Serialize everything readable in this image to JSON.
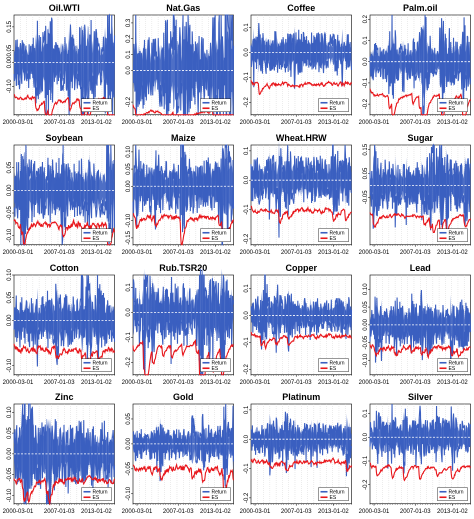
{
  "chart_data": {
    "type": "line",
    "x_ticks": [
      "2000-03-01",
      "2007-01-03",
      "2013-01-02"
    ],
    "legend": {
      "placement": "bottom-right",
      "entries": [
        "Return",
        "ES"
      ]
    },
    "colors": {
      "Return": "#3b5fc0",
      "ES": "#e8161b",
      "zero_line": "#ffffff",
      "grid": "#cfcfcf"
    },
    "panels": [
      {
        "title": "Oil.WTI",
        "ylim": [
          -0.22,
          0.2
        ],
        "yticks": [
          "-0.10",
          "0.00",
          "0.05",
          "0.15"
        ],
        "ret_amp": 0.07,
        "es_level": -0.12,
        "seed": 11
      },
      {
        "title": "Nat.Gas",
        "ylim": [
          -0.28,
          0.35
        ],
        "yticks": [
          "-0.2",
          "0.0",
          "0.1",
          "0.2",
          "0.3"
        ],
        "ret_amp": 0.12,
        "es_level": -0.2,
        "seed": 12
      },
      {
        "title": "Coffee",
        "ylim": [
          -0.25,
          0.15
        ],
        "yticks": [
          "-0.2",
          "-0.1",
          "0.0",
          "0.1"
        ],
        "ret_amp": 0.05,
        "es_level": -0.1,
        "seed": 13
      },
      {
        "title": "Palm.oil",
        "ylim": [
          -0.25,
          0.22
        ],
        "yticks": [
          "-0.2",
          "-0.1",
          "0.0",
          "0.1",
          "0.2"
        ],
        "ret_amp": 0.05,
        "es_level": -0.12,
        "seed": 14
      },
      {
        "title": "Soybean",
        "ylim": [
          -0.12,
          0.1
        ],
        "yticks": [
          "-0.10",
          "-0.05",
          "0.00",
          "0.05"
        ],
        "ret_amp": 0.04,
        "es_level": -0.06,
        "seed": 21
      },
      {
        "title": "Maize",
        "ylim": [
          -0.17,
          0.12
        ],
        "yticks": [
          "-0.15",
          "-0.10",
          "0.00",
          "0.05",
          "0.10"
        ],
        "ret_amp": 0.045,
        "es_level": -0.07,
        "seed": 22
      },
      {
        "title": "Wheat.HRW",
        "ylim": [
          -0.22,
          0.12
        ],
        "yticks": [
          "-0.2",
          "-0.1",
          "0.0",
          "0.1"
        ],
        "ret_amp": 0.05,
        "es_level": -0.08,
        "seed": 23
      },
      {
        "title": "Sugar",
        "ylim": [
          -0.25,
          0.17
        ],
        "yticks": [
          "-0.05",
          "0.05",
          "0.15"
        ],
        "ret_amp": 0.06,
        "es_level": -0.1,
        "seed": 24
      },
      {
        "title": "Cotton",
        "ylim": [
          -0.12,
          0.1
        ],
        "yticks": [
          "-0.10",
          "0.00",
          "0.05",
          "0.10"
        ],
        "ret_amp": 0.035,
        "es_level": -0.05,
        "seed": 31
      },
      {
        "title": "Rub.TSR20",
        "ylim": [
          -0.25,
          0.15
        ],
        "yticks": [
          "-0.2",
          "-0.1",
          "0.0",
          "0.1"
        ],
        "ret_amp": 0.05,
        "es_level": -0.1,
        "seed": 32
      },
      {
        "title": "Copper",
        "ylim": [
          -0.22,
          0.15
        ],
        "yticks": [
          "-0.2",
          "-0.1",
          "0.0",
          "0.1"
        ],
        "ret_amp": 0.04,
        "es_level": -0.06,
        "seed": 33
      },
      {
        "title": "Lead",
        "ylim": [
          -0.14,
          0.14
        ],
        "yticks": [
          "-0.10",
          "-0.05",
          "0.00",
          "0.05",
          "0.10"
        ],
        "ret_amp": 0.035,
        "es_level": -0.05,
        "seed": 34
      },
      {
        "title": "Zinc",
        "ylim": [
          -0.12,
          0.12
        ],
        "yticks": [
          "-0.10",
          "-0.05",
          "0.00",
          "0.05",
          "0.10"
        ],
        "ret_amp": 0.045,
        "es_level": -0.05,
        "seed": 41
      },
      {
        "title": "Gold",
        "ylim": [
          -0.12,
          0.08
        ],
        "yticks": [
          "-0.10",
          "-0.05",
          "0.00",
          "0.05"
        ],
        "ret_amp": 0.02,
        "es_level": -0.04,
        "seed": 42
      },
      {
        "title": "Platinum",
        "ylim": [
          -0.22,
          0.12
        ],
        "yticks": [
          "-0.2",
          "-0.1",
          "0.0",
          "0.1"
        ],
        "ret_amp": 0.035,
        "es_level": -0.06,
        "seed": 43
      },
      {
        "title": "Silver",
        "ylim": [
          -0.28,
          0.14
        ],
        "yticks": [
          "-0.2",
          "-0.1",
          "0.0",
          "0.1"
        ],
        "ret_amp": 0.045,
        "es_level": -0.1,
        "seed": 44
      }
    ]
  }
}
